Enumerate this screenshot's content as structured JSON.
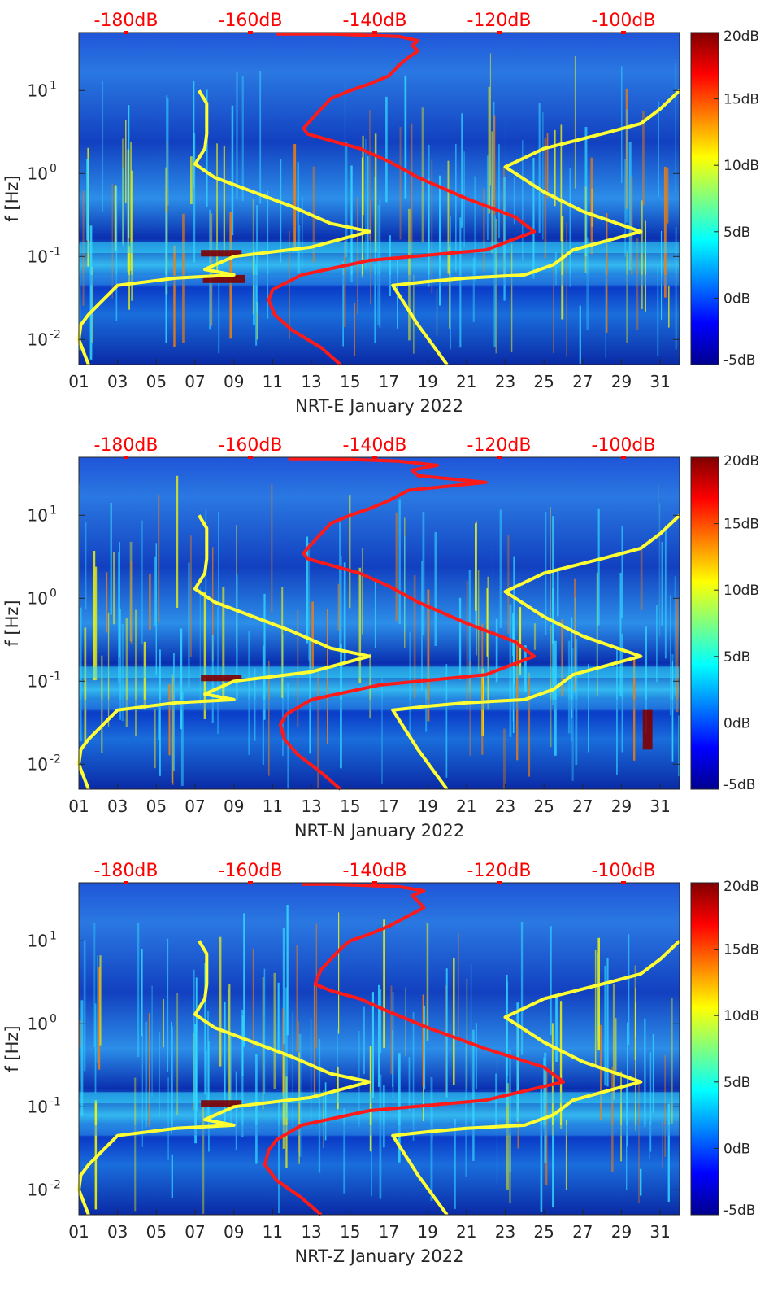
{
  "colors": {
    "low": "#00008f",
    "mid_low": "#0a3cc8",
    "mid": "#2c8ee8",
    "cyan": "#33dcff",
    "yellow": "#ffff00",
    "orange": "#ff8000",
    "high": "#800000",
    "pressure_line": "#ff1a1a",
    "noise_model": "#ffff33",
    "top_labels": "#ff0000"
  },
  "chart_data": [
    {
      "type": "heatmap",
      "station": "NRT-E",
      "xlabel": "NRT-E January 2022",
      "ylabel": "f [Hz]",
      "x_ticks": [
        "01",
        "03",
        "05",
        "07",
        "09",
        "11",
        "13",
        "15",
        "17",
        "19",
        "21",
        "23",
        "25",
        "27",
        "29",
        "31"
      ],
      "x_range_days": [
        1,
        32
      ],
      "y_ticks": [
        "10^-2",
        "10^-1",
        "10^0",
        "10^1"
      ],
      "y_range_hz": [
        0.005,
        50
      ],
      "top_axis_labels": [
        "-180dB",
        "-160dB",
        "-140dB",
        "-120dB",
        "-100dB"
      ],
      "colorbar": {
        "ticks": [
          "20dB",
          "15dB",
          "10dB",
          "5dB",
          "0dB",
          "-5dB"
        ],
        "range_db": [
          -5,
          20
        ]
      },
      "series": [
        {
          "name": "red-pressure-curve",
          "points": [
            [
              14.5,
              0.005
            ],
            [
              13.5,
              0.008
            ],
            [
              12,
              0.013
            ],
            [
              11.1,
              0.02
            ],
            [
              10.8,
              0.03
            ],
            [
              11.0,
              0.04
            ],
            [
              12.5,
              0.06
            ],
            [
              16,
              0.09
            ],
            [
              22,
              0.12
            ],
            [
              24.5,
              0.2
            ],
            [
              23.5,
              0.3
            ],
            [
              21,
              0.5
            ],
            [
              18.5,
              0.9
            ],
            [
              17,
              1.4
            ],
            [
              15.5,
              2.0
            ],
            [
              14,
              2.5
            ],
            [
              12.8,
              3.0
            ],
            [
              12.6,
              3.5
            ],
            [
              13,
              4.5
            ],
            [
              13.5,
              6
            ],
            [
              14,
              8
            ],
            [
              15,
              10
            ],
            [
              16,
              12
            ],
            [
              17,
              15
            ],
            [
              17.5,
              20
            ],
            [
              18,
              25
            ],
            [
              18.5,
              30
            ],
            [
              18.2,
              35
            ],
            [
              18.5,
              40
            ],
            [
              17.5,
              45
            ],
            [
              14,
              48
            ],
            [
              11.2,
              48
            ]
          ]
        },
        {
          "name": "yellow-low-noise-model",
          "points": [
            [
              1.5,
              0.005
            ],
            [
              1.0,
              0.01
            ],
            [
              1.1,
              0.015
            ],
            [
              1.5,
              0.02
            ],
            [
              3,
              0.045
            ],
            [
              6,
              0.055
            ],
            [
              9,
              0.06
            ],
            [
              7.5,
              0.07
            ],
            [
              9,
              0.1
            ],
            [
              13,
              0.13
            ],
            [
              16,
              0.2
            ],
            [
              14,
              0.25
            ],
            [
              12,
              0.4
            ],
            [
              10,
              0.6
            ],
            [
              8,
              0.9
            ],
            [
              7,
              1.3
            ],
            [
              7.5,
              2
            ],
            [
              7.6,
              3
            ],
            [
              7.6,
              5
            ],
            [
              7.6,
              7
            ],
            [
              7.2,
              10
            ]
          ]
        },
        {
          "name": "yellow-high-noise-model",
          "points": [
            [
              20,
              0.005
            ],
            [
              18.5,
              0.015
            ],
            [
              17.2,
              0.045
            ],
            [
              19,
              0.05
            ],
            [
              21,
              0.055
            ],
            [
              24,
              0.06
            ],
            [
              25.5,
              0.08
            ],
            [
              26.5,
              0.12
            ],
            [
              30,
              0.2
            ],
            [
              27,
              0.35
            ],
            [
              25,
              0.6
            ],
            [
              23,
              1.2
            ],
            [
              25,
              2
            ],
            [
              28,
              3
            ],
            [
              30,
              4
            ],
            [
              31,
              6
            ],
            [
              32,
              10
            ]
          ]
        }
      ],
      "hot_events": [
        [
          7.3,
          9.4,
          0.1,
          0.12
        ],
        [
          7.4,
          9.6,
          0.048,
          0.06
        ]
      ]
    },
    {
      "type": "heatmap",
      "station": "NRT-N",
      "xlabel": "NRT-N January 2022",
      "ylabel": "f [Hz]",
      "x_ticks": [
        "01",
        "03",
        "05",
        "07",
        "09",
        "11",
        "13",
        "15",
        "17",
        "19",
        "21",
        "23",
        "25",
        "27",
        "29",
        "31"
      ],
      "x_range_days": [
        1,
        32
      ],
      "y_ticks": [
        "10^-2",
        "10^-1",
        "10^0",
        "10^1"
      ],
      "y_range_hz": [
        0.005,
        50
      ],
      "top_axis_labels": [
        "-180dB",
        "-160dB",
        "-140dB",
        "-120dB",
        "-100dB"
      ],
      "colorbar": {
        "ticks": [
          "20dB",
          "15dB",
          "10dB",
          "5dB",
          "0dB",
          "-5dB"
        ],
        "range_db": [
          -5,
          20
        ]
      },
      "series": [
        {
          "name": "red-pressure-curve",
          "points": [
            [
              14.5,
              0.005
            ],
            [
              13.5,
              0.008
            ],
            [
              12.3,
              0.013
            ],
            [
              11.6,
              0.02
            ],
            [
              11.4,
              0.03
            ],
            [
              11.7,
              0.04
            ],
            [
              13,
              0.06
            ],
            [
              16.5,
              0.09
            ],
            [
              22,
              0.12
            ],
            [
              24.5,
              0.2
            ],
            [
              23.5,
              0.3
            ],
            [
              21,
              0.5
            ],
            [
              18.5,
              0.9
            ],
            [
              17,
              1.4
            ],
            [
              15.5,
              2.0
            ],
            [
              14,
              2.5
            ],
            [
              12.8,
              3.0
            ],
            [
              12.6,
              3.5
            ],
            [
              13,
              4.5
            ],
            [
              13.5,
              6
            ],
            [
              14,
              8
            ],
            [
              15,
              10
            ],
            [
              16,
              12
            ],
            [
              17,
              15
            ],
            [
              18,
              20
            ],
            [
              22,
              25
            ],
            [
              18.5,
              30
            ],
            [
              18.2,
              35
            ],
            [
              19.5,
              40
            ],
            [
              17.5,
              45
            ],
            [
              14,
              48
            ],
            [
              11.8,
              48
            ]
          ]
        },
        {
          "name": "yellow-low-noise-model",
          "points": [
            [
              1.5,
              0.005
            ],
            [
              1.0,
              0.01
            ],
            [
              1.1,
              0.015
            ],
            [
              1.5,
              0.02
            ],
            [
              3,
              0.045
            ],
            [
              6,
              0.055
            ],
            [
              9,
              0.06
            ],
            [
              7.5,
              0.07
            ],
            [
              9,
              0.1
            ],
            [
              13,
              0.13
            ],
            [
              16,
              0.2
            ],
            [
              14,
              0.25
            ],
            [
              12,
              0.4
            ],
            [
              10,
              0.6
            ],
            [
              8,
              0.9
            ],
            [
              7,
              1.3
            ],
            [
              7.5,
              2
            ],
            [
              7.6,
              3
            ],
            [
              7.6,
              5
            ],
            [
              7.6,
              7
            ],
            [
              7.2,
              10
            ]
          ]
        },
        {
          "name": "yellow-high-noise-model",
          "points": [
            [
              20,
              0.005
            ],
            [
              18.5,
              0.015
            ],
            [
              17.2,
              0.045
            ],
            [
              19,
              0.05
            ],
            [
              21,
              0.055
            ],
            [
              24,
              0.06
            ],
            [
              25.5,
              0.08
            ],
            [
              26.5,
              0.12
            ],
            [
              30,
              0.2
            ],
            [
              27,
              0.35
            ],
            [
              25,
              0.6
            ],
            [
              23,
              1.2
            ],
            [
              25,
              2
            ],
            [
              28,
              3
            ],
            [
              30,
              4
            ],
            [
              31,
              6
            ],
            [
              32,
              10
            ]
          ]
        }
      ],
      "hot_events": [
        [
          7.3,
          9.4,
          0.1,
          0.12
        ],
        [
          30.1,
          30.6,
          0.015,
          0.045
        ]
      ]
    },
    {
      "type": "heatmap",
      "station": "NRT-Z",
      "xlabel": "NRT-Z January 2022",
      "ylabel": "f [Hz]",
      "x_ticks": [
        "01",
        "03",
        "05",
        "07",
        "09",
        "11",
        "13",
        "15",
        "17",
        "19",
        "21",
        "23",
        "25",
        "27",
        "29",
        "31"
      ],
      "x_range_days": [
        1,
        32
      ],
      "y_ticks": [
        "10^-2",
        "10^-1",
        "10^0",
        "10^1"
      ],
      "y_range_hz": [
        0.005,
        50
      ],
      "top_axis_labels": [
        "-180dB",
        "-160dB",
        "-140dB",
        "-120dB",
        "-100dB"
      ],
      "colorbar": {
        "ticks": [
          "20dB",
          "15dB",
          "10dB",
          "5dB",
          "0dB",
          "-5dB"
        ],
        "range_db": [
          -5,
          20
        ]
      },
      "series": [
        {
          "name": "red-pressure-curve",
          "points": [
            [
              13.5,
              0.005
            ],
            [
              12.5,
              0.008
            ],
            [
              11.2,
              0.013
            ],
            [
              10.6,
              0.02
            ],
            [
              10.8,
              0.03
            ],
            [
              11.2,
              0.04
            ],
            [
              12.5,
              0.06
            ],
            [
              16,
              0.09
            ],
            [
              22,
              0.12
            ],
            [
              26,
              0.2
            ],
            [
              25,
              0.3
            ],
            [
              22,
              0.5
            ],
            [
              19,
              0.9
            ],
            [
              17,
              1.4
            ],
            [
              15.5,
              2.0
            ],
            [
              14,
              2.5
            ],
            [
              13.2,
              3.0
            ],
            [
              13.3,
              3.5
            ],
            [
              13.5,
              4.5
            ],
            [
              14,
              6
            ],
            [
              14.5,
              8
            ],
            [
              15,
              10
            ],
            [
              16,
              12
            ],
            [
              17,
              15
            ],
            [
              18,
              20
            ],
            [
              18.8,
              25
            ],
            [
              18.5,
              30
            ],
            [
              18.2,
              35
            ],
            [
              18.8,
              40
            ],
            [
              17.5,
              45
            ],
            [
              14,
              48
            ],
            [
              12.5,
              48
            ]
          ]
        },
        {
          "name": "yellow-low-noise-model",
          "points": [
            [
              1.5,
              0.005
            ],
            [
              1.0,
              0.01
            ],
            [
              1.1,
              0.015
            ],
            [
              1.5,
              0.02
            ],
            [
              3,
              0.045
            ],
            [
              6,
              0.055
            ],
            [
              9,
              0.06
            ],
            [
              7.5,
              0.07
            ],
            [
              9,
              0.1
            ],
            [
              13,
              0.13
            ],
            [
              16,
              0.2
            ],
            [
              14,
              0.25
            ],
            [
              12,
              0.4
            ],
            [
              10,
              0.6
            ],
            [
              8,
              0.9
            ],
            [
              7,
              1.3
            ],
            [
              7.5,
              2
            ],
            [
              7.6,
              3
            ],
            [
              7.6,
              5
            ],
            [
              7.6,
              7
            ],
            [
              7.2,
              10
            ]
          ]
        },
        {
          "name": "yellow-high-noise-model",
          "points": [
            [
              20,
              0.005
            ],
            [
              18.5,
              0.015
            ],
            [
              17.2,
              0.045
            ],
            [
              19,
              0.05
            ],
            [
              21,
              0.055
            ],
            [
              24,
              0.06
            ],
            [
              25.5,
              0.08
            ],
            [
              26.5,
              0.12
            ],
            [
              30,
              0.2
            ],
            [
              27,
              0.35
            ],
            [
              25,
              0.6
            ],
            [
              23,
              1.2
            ],
            [
              25,
              2
            ],
            [
              28,
              3
            ],
            [
              30,
              4
            ],
            [
              31,
              6
            ],
            [
              32,
              10
            ]
          ]
        }
      ],
      "hot_events": [
        [
          7.3,
          9.4,
          0.1,
          0.12
        ]
      ]
    }
  ]
}
